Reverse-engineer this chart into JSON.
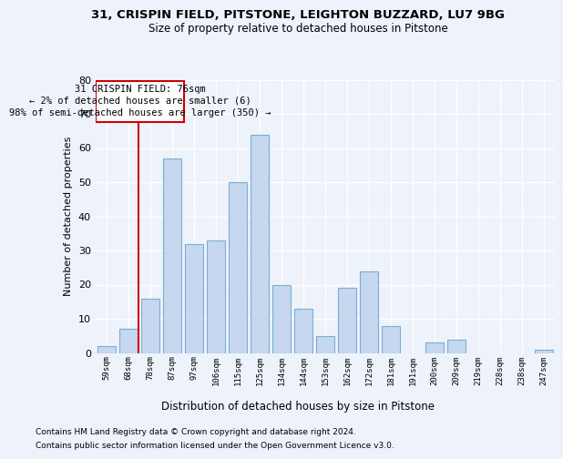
{
  "title1": "31, CRISPIN FIELD, PITSTONE, LEIGHTON BUZZARD, LU7 9BG",
  "title2": "Size of property relative to detached houses in Pitstone",
  "xlabel": "Distribution of detached houses by size in Pitstone",
  "ylabel": "Number of detached properties",
  "categories": [
    "59sqm",
    "68sqm",
    "78sqm",
    "87sqm",
    "97sqm",
    "106sqm",
    "115sqm",
    "125sqm",
    "134sqm",
    "144sqm",
    "153sqm",
    "162sqm",
    "172sqm",
    "181sqm",
    "191sqm",
    "200sqm",
    "209sqm",
    "219sqm",
    "228sqm",
    "238sqm",
    "247sqm"
  ],
  "values": [
    2,
    7,
    16,
    57,
    32,
    33,
    50,
    64,
    20,
    13,
    5,
    19,
    24,
    8,
    0,
    3,
    4,
    0,
    0,
    0,
    1
  ],
  "bar_color": "#c5d8ef",
  "bar_edge_color": "#7aafd4",
  "vline_color": "#cc0000",
  "annotation_box_edge_color": "#cc0000",
  "annotation_text1": "31 CRISPIN FIELD: 76sqm",
  "annotation_text2": "← 2% of detached houses are smaller (6)",
  "annotation_text3": "98% of semi-detached houses are larger (350) →",
  "background_color": "#eef2fa",
  "grid_color": "#ffffff",
  "footnote1": "Contains HM Land Registry data © Crown copyright and database right 2024.",
  "footnote2": "Contains public sector information licensed under the Open Government Licence v3.0.",
  "ylim": [
    0,
    80
  ],
  "yticks": [
    0,
    10,
    20,
    30,
    40,
    50,
    60,
    70,
    80
  ],
  "vline_x": 1.45
}
